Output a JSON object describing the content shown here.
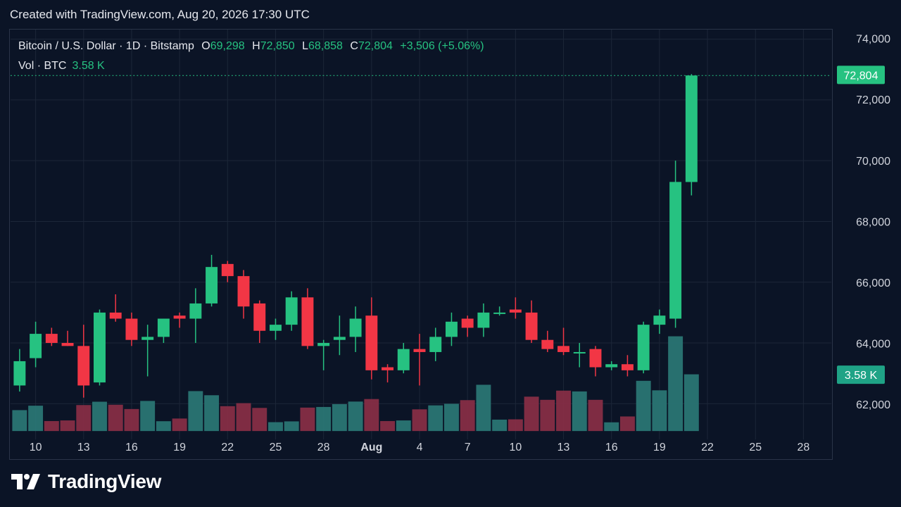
{
  "watermark": "Created with TradingView.com, Aug 20, 2026 17:30 UTC",
  "legend": {
    "symbol": "Bitcoin / U.S. Dollar · 1D · Bitstamp",
    "o_label": "O",
    "o_value": "69,298",
    "h_label": "H",
    "h_value": "72,850",
    "l_label": "L",
    "l_value": "68,858",
    "c_label": "C",
    "c_value": "72,804",
    "change": "+3,506 (+5.06%)",
    "vol_label": "Vol · BTC",
    "vol_value": "3.58 K"
  },
  "logo_text": "TradingView",
  "colors": {
    "up": "#26c281",
    "down": "#f23645",
    "background": "#0b1426",
    "grid": "#1c2638"
  },
  "chart_data": {
    "type": "candlestick",
    "x_ticks": [
      "10",
      "13",
      "16",
      "19",
      "22",
      "25",
      "28",
      "Aug",
      "4",
      "7",
      "10",
      "13",
      "16",
      "19",
      "22",
      "25",
      "28"
    ],
    "y_ticks": [
      "62,000",
      "64,000",
      "66,000",
      "68,000",
      "70,000",
      "72,000",
      "74,000"
    ],
    "ylim": [
      61100,
      74200
    ],
    "last_price_label": "72,804",
    "last_volume_label": "3.58 K",
    "candles": [
      {
        "date": "Jul 9",
        "o": 62600,
        "h": 63800,
        "l": 62400,
        "c": 63400,
        "v": 1.32
      },
      {
        "date": "Jul 10",
        "o": 63500,
        "h": 64700,
        "l": 63200,
        "c": 64300,
        "v": 1.6
      },
      {
        "date": "Jul 11",
        "o": 64300,
        "h": 64500,
        "l": 63900,
        "c": 64000,
        "v": 0.63
      },
      {
        "date": "Jul 12",
        "o": 64000,
        "h": 64400,
        "l": 63900,
        "c": 63900,
        "v": 0.67
      },
      {
        "date": "Jul 13",
        "o": 63900,
        "h": 64600,
        "l": 62200,
        "c": 62600,
        "v": 1.64
      },
      {
        "date": "Jul 14",
        "o": 62700,
        "h": 65100,
        "l": 62600,
        "c": 65000,
        "v": 1.85
      },
      {
        "date": "Jul 15",
        "o": 65000,
        "h": 65600,
        "l": 64700,
        "c": 64800,
        "v": 1.66
      },
      {
        "date": "Jul 16",
        "o": 64800,
        "h": 65000,
        "l": 63900,
        "c": 64100,
        "v": 1.39
      },
      {
        "date": "Jul 17",
        "o": 64100,
        "h": 64600,
        "l": 62900,
        "c": 64200,
        "v": 1.9
      },
      {
        "date": "Jul 18",
        "o": 64200,
        "h": 64800,
        "l": 64000,
        "c": 64800,
        "v": 0.62
      },
      {
        "date": "Jul 19",
        "o": 64900,
        "h": 65000,
        "l": 64500,
        "c": 64800,
        "v": 0.79
      },
      {
        "date": "Jul 20",
        "o": 64800,
        "h": 65800,
        "l": 64000,
        "c": 65300,
        "v": 2.52
      },
      {
        "date": "Jul 21",
        "o": 65300,
        "h": 66900,
        "l": 65200,
        "c": 66500,
        "v": 2.26
      },
      {
        "date": "Jul 22",
        "o": 66600,
        "h": 66700,
        "l": 66000,
        "c": 66200,
        "v": 1.57
      },
      {
        "date": "Jul 23",
        "o": 66200,
        "h": 66400,
        "l": 64800,
        "c": 65200,
        "v": 1.76
      },
      {
        "date": "Jul 24",
        "o": 65300,
        "h": 65400,
        "l": 64000,
        "c": 64400,
        "v": 1.46
      },
      {
        "date": "Jul 25",
        "o": 64400,
        "h": 64800,
        "l": 64100,
        "c": 64600,
        "v": 0.56
      },
      {
        "date": "Jul 26",
        "o": 64600,
        "h": 65700,
        "l": 64400,
        "c": 65500,
        "v": 0.61
      },
      {
        "date": "Jul 27",
        "o": 65500,
        "h": 65800,
        "l": 63800,
        "c": 63900,
        "v": 1.48
      },
      {
        "date": "Jul 28",
        "o": 63900,
        "h": 64100,
        "l": 63100,
        "c": 64000,
        "v": 1.52
      },
      {
        "date": "Jul 29",
        "o": 64100,
        "h": 64900,
        "l": 63600,
        "c": 64200,
        "v": 1.7
      },
      {
        "date": "Jul 30",
        "o": 64200,
        "h": 65200,
        "l": 63700,
        "c": 64800,
        "v": 1.86
      },
      {
        "date": "Jul 31",
        "o": 64900,
        "h": 65500,
        "l": 62800,
        "c": 63100,
        "v": 2.02
      },
      {
        "date": "Aug 1",
        "o": 63200,
        "h": 63300,
        "l": 62700,
        "c": 63100,
        "v": 0.63
      },
      {
        "date": "Aug 2",
        "o": 63100,
        "h": 64000,
        "l": 63000,
        "c": 63800,
        "v": 0.67
      },
      {
        "date": "Aug 3",
        "o": 63800,
        "h": 64300,
        "l": 62600,
        "c": 63700,
        "v": 1.37
      },
      {
        "date": "Aug 4",
        "o": 63700,
        "h": 64500,
        "l": 63400,
        "c": 64200,
        "v": 1.62
      },
      {
        "date": "Aug 5",
        "o": 64200,
        "h": 65000,
        "l": 63900,
        "c": 64700,
        "v": 1.72
      },
      {
        "date": "Aug 6",
        "o": 64800,
        "h": 64900,
        "l": 64200,
        "c": 64500,
        "v": 1.95
      },
      {
        "date": "Aug 7",
        "o": 64500,
        "h": 65300,
        "l": 64200,
        "c": 65000,
        "v": 2.92
      },
      {
        "date": "Aug 8",
        "o": 65000,
        "h": 65200,
        "l": 64900,
        "c": 65000,
        "v": 0.72
      },
      {
        "date": "Aug 9",
        "o": 65100,
        "h": 65500,
        "l": 64800,
        "c": 65000,
        "v": 0.74
      },
      {
        "date": "Aug 10",
        "o": 65000,
        "h": 65400,
        "l": 64000,
        "c": 64100,
        "v": 2.17
      },
      {
        "date": "Aug 11",
        "o": 64100,
        "h": 64400,
        "l": 63700,
        "c": 63800,
        "v": 1.97
      },
      {
        "date": "Aug 12",
        "o": 63900,
        "h": 64500,
        "l": 63600,
        "c": 63700,
        "v": 2.55
      },
      {
        "date": "Aug 13",
        "o": 63700,
        "h": 64000,
        "l": 63200,
        "c": 63700,
        "v": 2.5
      },
      {
        "date": "Aug 14",
        "o": 63800,
        "h": 63900,
        "l": 62900,
        "c": 63200,
        "v": 1.97
      },
      {
        "date": "Aug 15",
        "o": 63200,
        "h": 63400,
        "l": 63100,
        "c": 63300,
        "v": 0.55
      },
      {
        "date": "Aug 16",
        "o": 63300,
        "h": 63600,
        "l": 62900,
        "c": 63100,
        "v": 0.92
      },
      {
        "date": "Aug 17",
        "o": 63100,
        "h": 64700,
        "l": 63000,
        "c": 64600,
        "v": 3.17
      },
      {
        "date": "Aug 18",
        "o": 64600,
        "h": 65100,
        "l": 64300,
        "c": 64900,
        "v": 2.57
      },
      {
        "date": "Aug 19",
        "o": 64800,
        "h": 70000,
        "l": 64500,
        "c": 69300,
        "v": 5.98
      },
      {
        "date": "Aug 20",
        "o": 69298,
        "h": 72850,
        "l": 68858,
        "c": 72804,
        "v": 3.58
      }
    ]
  }
}
